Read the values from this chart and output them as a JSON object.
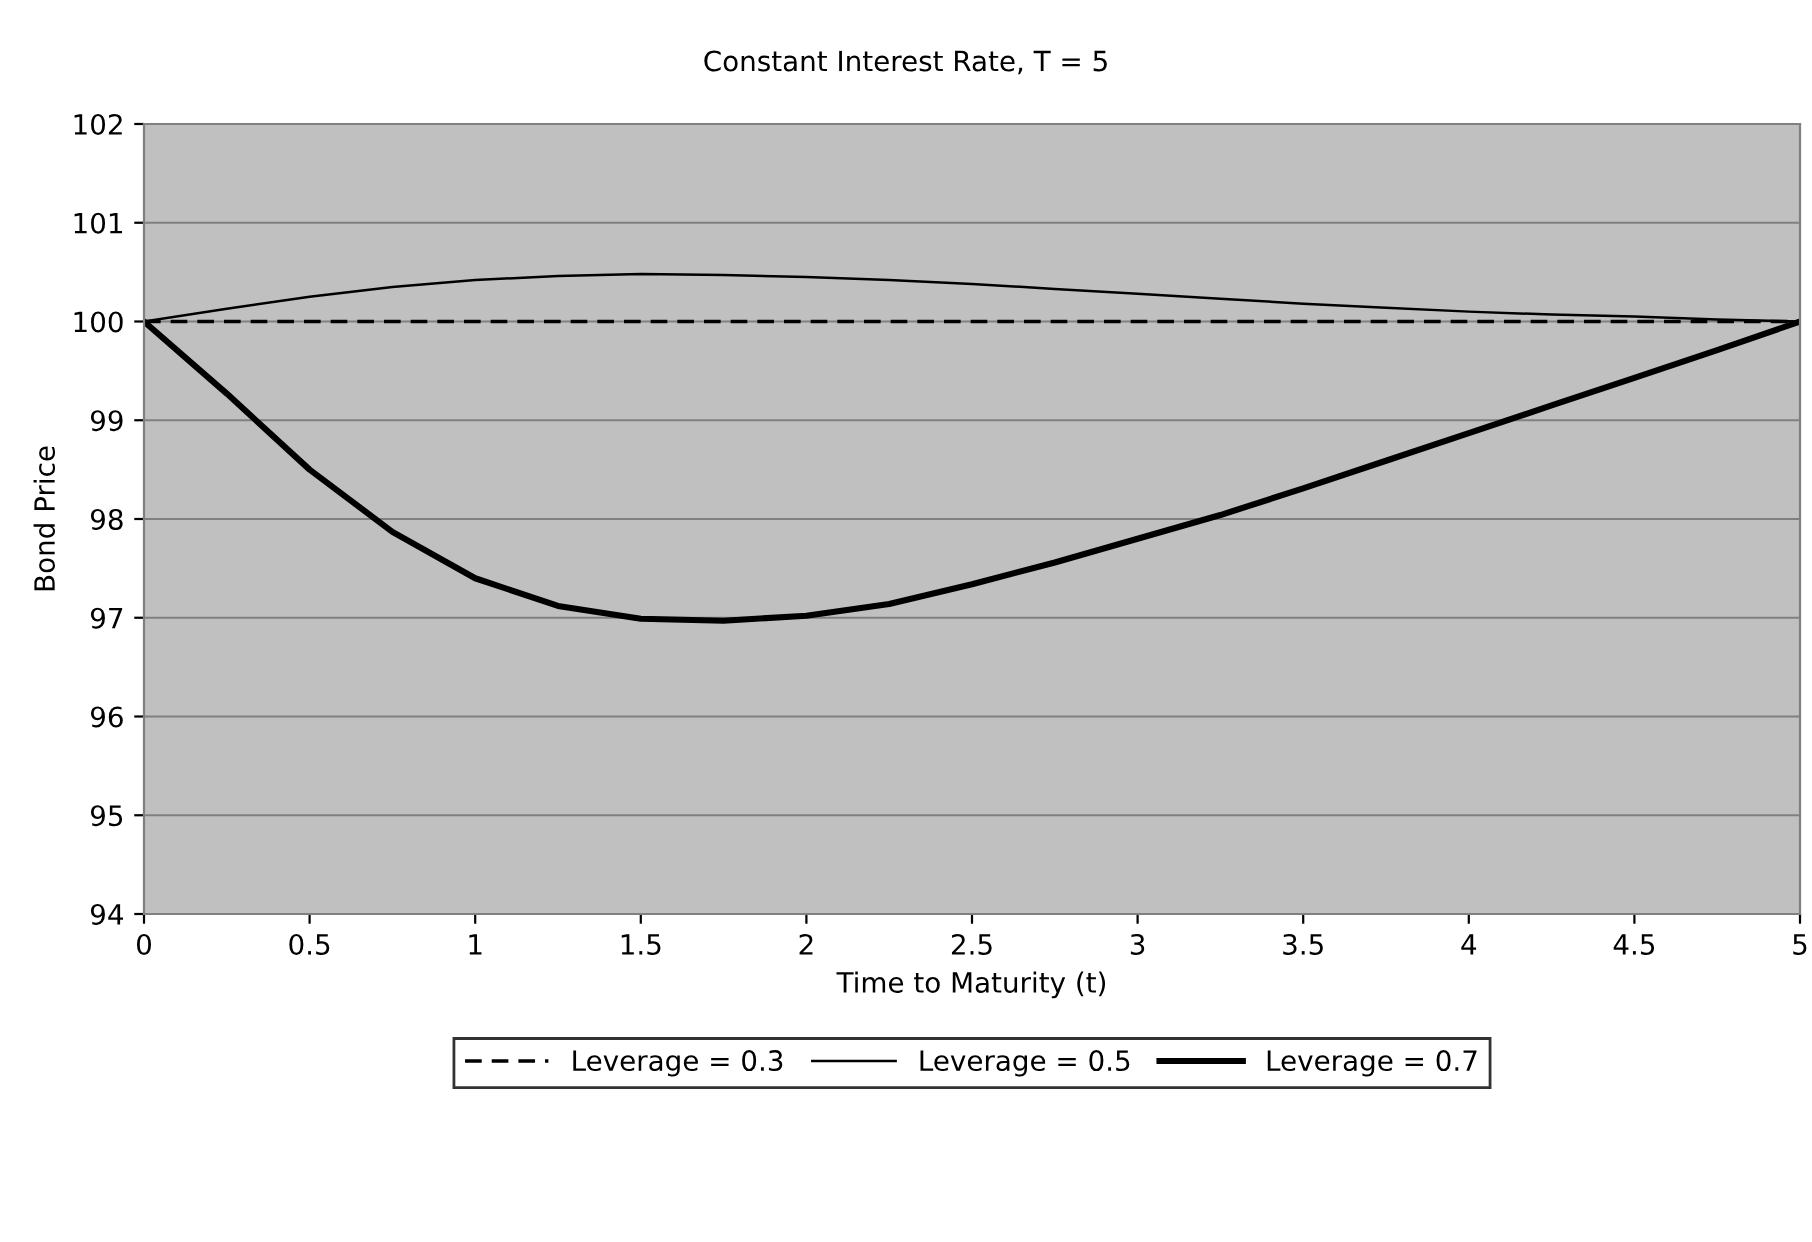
{
  "chart_data": {
    "type": "line",
    "title": "Constant Interest Rate, T = 5",
    "xlabel": "Time to Maturity (t)",
    "ylabel": "Bond Price",
    "x": [
      0,
      0.25,
      0.5,
      0.75,
      1,
      1.25,
      1.5,
      1.75,
      2,
      2.25,
      2.5,
      2.75,
      3,
      3.25,
      3.5,
      3.75,
      4,
      4.25,
      4.5,
      4.75,
      5
    ],
    "series": [
      {
        "name": "Leverage = 0.3",
        "color": "#000000",
        "line_style": "dashed",
        "values": [
          100,
          100,
          100,
          100,
          100,
          100,
          100,
          100,
          100,
          100,
          100,
          100,
          100,
          100,
          100,
          100,
          100,
          100,
          100,
          100,
          100
        ]
      },
      {
        "name": "Leverage = 0.5",
        "color": "#000000",
        "line_style": "solid",
        "values": [
          100,
          100.13,
          100.25,
          100.35,
          100.42,
          100.46,
          100.48,
          100.47,
          100.45,
          100.42,
          100.38,
          100.33,
          100.28,
          100.23,
          100.18,
          100.14,
          100.1,
          100.07,
          100.05,
          100.02,
          100
        ]
      },
      {
        "name": "Leverage = 0.7",
        "color": "#000000",
        "line_style": "solid",
        "values": [
          100,
          99.27,
          98.5,
          97.87,
          97.4,
          97.12,
          96.99,
          96.97,
          97.02,
          97.14,
          97.34,
          97.56,
          97.8,
          98.04,
          98.31,
          98.59,
          98.87,
          99.15,
          99.43,
          99.71,
          100
        ]
      }
    ],
    "xlim": [
      0,
      5
    ],
    "xticks": [
      0,
      0.5,
      1,
      1.5,
      2,
      2.5,
      3,
      3.5,
      4,
      4.5,
      5
    ],
    "ylim": [
      94,
      102
    ],
    "yticks": [
      94,
      95,
      96,
      97,
      98,
      99,
      100,
      101,
      102
    ],
    "grid": "y",
    "legend": "bottom"
  }
}
